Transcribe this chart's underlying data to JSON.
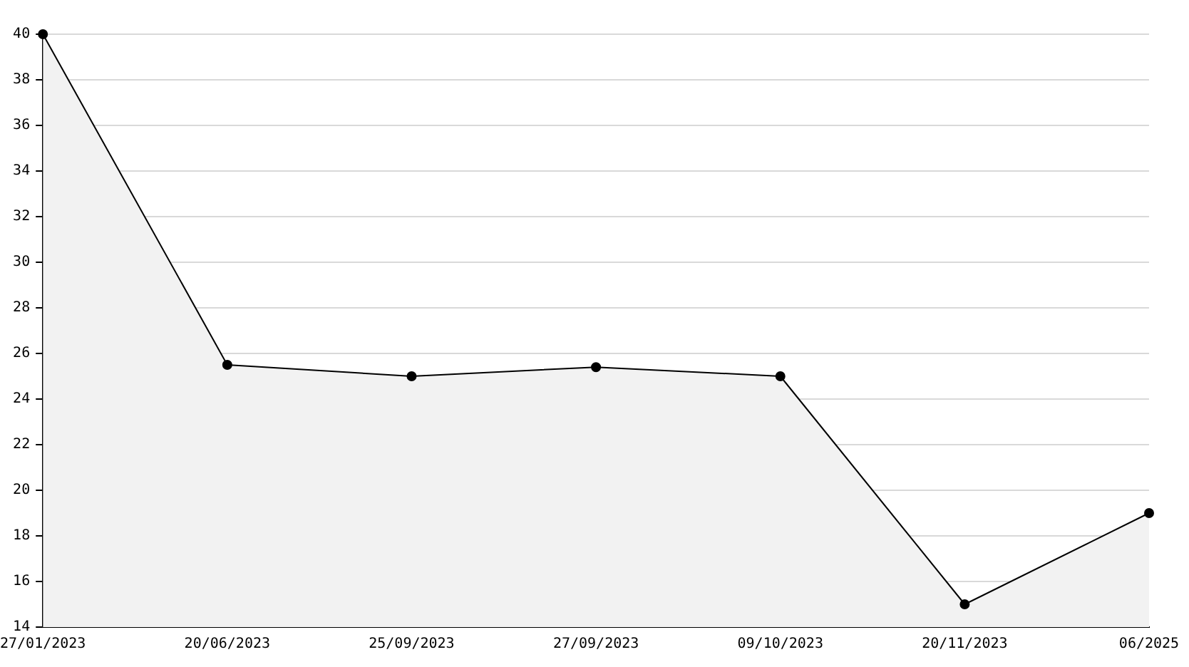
{
  "chart_data": {
    "type": "area",
    "categories": [
      "27/01/2023",
      "20/06/2023",
      "25/09/2023",
      "27/09/2023",
      "09/10/2023",
      "20/11/2023",
      "06/2025"
    ],
    "series": [
      {
        "color": "#000000",
        "values": [
          40,
          25.5,
          25,
          25.4,
          25,
          15,
          19
        ]
      }
    ],
    "ylim": [
      14,
      40
    ],
    "yticks": [
      14,
      16,
      18,
      20,
      22,
      24,
      26,
      28,
      30,
      32,
      34,
      36,
      38,
      40
    ],
    "grid": "y",
    "marker": "circle",
    "line_style": "solid"
  }
}
